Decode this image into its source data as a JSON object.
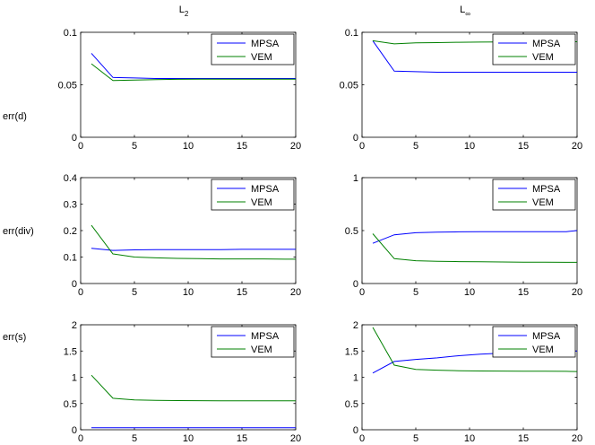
{
  "columns": [
    {
      "label": "L",
      "sub": "2"
    },
    {
      "label": "L",
      "sub": "∞"
    }
  ],
  "rows": [
    {
      "label": "err(d)"
    },
    {
      "label": "err(div)"
    },
    {
      "label": "err(s)"
    }
  ],
  "colors": {
    "MPSA": "#0000ff",
    "VEM": "#008000"
  },
  "chart_data": [
    {
      "type": "line",
      "row": "err(d)",
      "column": "L2",
      "x": [
        1,
        3,
        5,
        7,
        9,
        11,
        13,
        15,
        17,
        19,
        20
      ],
      "xlim": [
        0,
        20
      ],
      "xticks": [
        0,
        5,
        10,
        15,
        20
      ],
      "ylim": [
        0,
        0.1
      ],
      "yticks": [
        "0",
        "0.05",
        "0.1"
      ],
      "ytick_values": [
        0,
        0.05,
        0.1
      ],
      "legend": "top-right",
      "series": [
        {
          "name": "MPSA",
          "values": [
            0.08,
            0.057,
            0.0565,
            0.056,
            0.056,
            0.056,
            0.056,
            0.056,
            0.056,
            0.056,
            0.056
          ]
        },
        {
          "name": "VEM",
          "values": [
            0.07,
            0.054,
            0.0545,
            0.055,
            0.0552,
            0.0553,
            0.0553,
            0.0554,
            0.0554,
            0.0554,
            0.0554
          ]
        }
      ]
    },
    {
      "type": "line",
      "row": "err(d)",
      "column": "Linf",
      "x": [
        1,
        3,
        5,
        7,
        9,
        11,
        13,
        15,
        17,
        19,
        20
      ],
      "xlim": [
        0,
        20
      ],
      "xticks": [
        0,
        5,
        10,
        15,
        20
      ],
      "ylim": [
        0,
        0.1
      ],
      "yticks": [
        "0",
        "0.05",
        "0.1"
      ],
      "ytick_values": [
        0,
        0.05,
        0.1
      ],
      "legend": "top-right",
      "series": [
        {
          "name": "MPSA",
          "values": [
            0.092,
            0.063,
            0.0625,
            0.062,
            0.062,
            0.062,
            0.062,
            0.062,
            0.062,
            0.062,
            0.062
          ]
        },
        {
          "name": "VEM",
          "values": [
            0.092,
            0.089,
            0.09,
            0.0902,
            0.0905,
            0.0907,
            0.0908,
            0.0909,
            0.091,
            0.091,
            0.091
          ]
        }
      ]
    },
    {
      "type": "line",
      "row": "err(div)",
      "column": "L2",
      "x": [
        1,
        3,
        5,
        7,
        9,
        11,
        13,
        15,
        17,
        19,
        20
      ],
      "xlim": [
        0,
        20
      ],
      "xticks": [
        0,
        5,
        10,
        15,
        20
      ],
      "ylim": [
        0,
        0.4
      ],
      "yticks": [
        "0",
        "0.1",
        "0.2",
        "0.3",
        "0.4"
      ],
      "ytick_values": [
        0,
        0.1,
        0.2,
        0.3,
        0.4
      ],
      "legend": "top-right",
      "series": [
        {
          "name": "MPSA",
          "values": [
            0.133,
            0.125,
            0.127,
            0.128,
            0.128,
            0.128,
            0.128,
            0.129,
            0.129,
            0.129,
            0.129
          ]
        },
        {
          "name": "VEM",
          "values": [
            0.22,
            0.112,
            0.1,
            0.097,
            0.095,
            0.094,
            0.093,
            0.093,
            0.093,
            0.092,
            0.092
          ]
        }
      ]
    },
    {
      "type": "line",
      "row": "err(div)",
      "column": "Linf",
      "x": [
        1,
        3,
        5,
        7,
        9,
        11,
        13,
        15,
        17,
        19,
        20
      ],
      "xlim": [
        0,
        20
      ],
      "xticks": [
        0,
        5,
        10,
        15,
        20
      ],
      "ylim": [
        0,
        1
      ],
      "yticks": [
        "0",
        "0.5",
        "1"
      ],
      "ytick_values": [
        0,
        0.5,
        1
      ],
      "legend": "top-right",
      "series": [
        {
          "name": "MPSA",
          "values": [
            0.38,
            0.46,
            0.48,
            0.485,
            0.488,
            0.49,
            0.49,
            0.49,
            0.49,
            0.49,
            0.5
          ]
        },
        {
          "name": "VEM",
          "values": [
            0.47,
            0.235,
            0.215,
            0.21,
            0.207,
            0.205,
            0.203,
            0.202,
            0.201,
            0.2,
            0.2
          ]
        }
      ]
    },
    {
      "type": "line",
      "row": "err(s)",
      "column": "L2",
      "x": [
        1,
        3,
        5,
        7,
        9,
        11,
        13,
        15,
        17,
        19,
        20
      ],
      "xlim": [
        0,
        20
      ],
      "xticks": [
        0,
        5,
        10,
        15,
        20
      ],
      "ylim": [
        0,
        2
      ],
      "yticks": [
        "0",
        "0.5",
        "1",
        "1.5",
        "2"
      ],
      "ytick_values": [
        0,
        0.5,
        1,
        1.5,
        2
      ],
      "legend": "top-right",
      "series": [
        {
          "name": "MPSA",
          "values": [
            0.04,
            0.04,
            0.04,
            0.04,
            0.04,
            0.04,
            0.04,
            0.04,
            0.04,
            0.04,
            0.04
          ]
        },
        {
          "name": "VEM",
          "values": [
            1.04,
            0.6,
            0.57,
            0.56,
            0.555,
            0.553,
            0.551,
            0.55,
            0.55,
            0.55,
            0.55
          ]
        }
      ]
    },
    {
      "type": "line",
      "row": "err(s)",
      "column": "Linf",
      "x": [
        1,
        3,
        5,
        7,
        9,
        11,
        13,
        15,
        17,
        19,
        20
      ],
      "xlim": [
        0,
        20
      ],
      "xticks": [
        0,
        5,
        10,
        15,
        20
      ],
      "ylim": [
        0,
        2
      ],
      "yticks": [
        "0",
        "0.5",
        "1",
        "1.5",
        "2"
      ],
      "ytick_values": [
        0,
        0.5,
        1,
        1.5,
        2
      ],
      "legend": "top-right",
      "series": [
        {
          "name": "MPSA",
          "values": [
            1.08,
            1.3,
            1.34,
            1.37,
            1.41,
            1.44,
            1.46,
            1.48,
            1.49,
            1.5,
            1.5
          ]
        },
        {
          "name": "VEM",
          "values": [
            1.95,
            1.23,
            1.15,
            1.135,
            1.125,
            1.12,
            1.118,
            1.116,
            1.115,
            1.113,
            1.11
          ]
        }
      ]
    }
  ]
}
